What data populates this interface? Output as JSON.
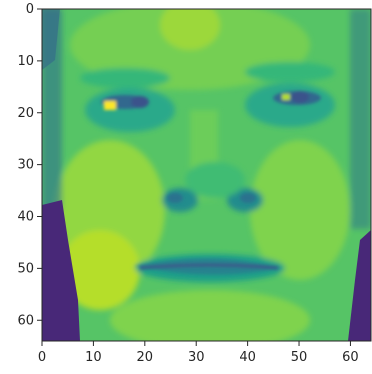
{
  "image": {
    "type": "heatmap",
    "subject": "grayscale face rendered with viridis colormap",
    "rows": 64,
    "cols": 64,
    "colormap": "viridis",
    "x_range": [
      0,
      64
    ],
    "y_range": [
      0,
      64
    ],
    "y_inverted": true,
    "x_ticks": [
      "0",
      "10",
      "20",
      "30",
      "40",
      "50",
      "60"
    ],
    "y_ticks": [
      "0",
      "10",
      "20",
      "30",
      "40",
      "50",
      "60"
    ],
    "colors": {
      "low": "#440154",
      "mid": "#21918c",
      "high": "#fde725",
      "axis": "#262626"
    }
  }
}
